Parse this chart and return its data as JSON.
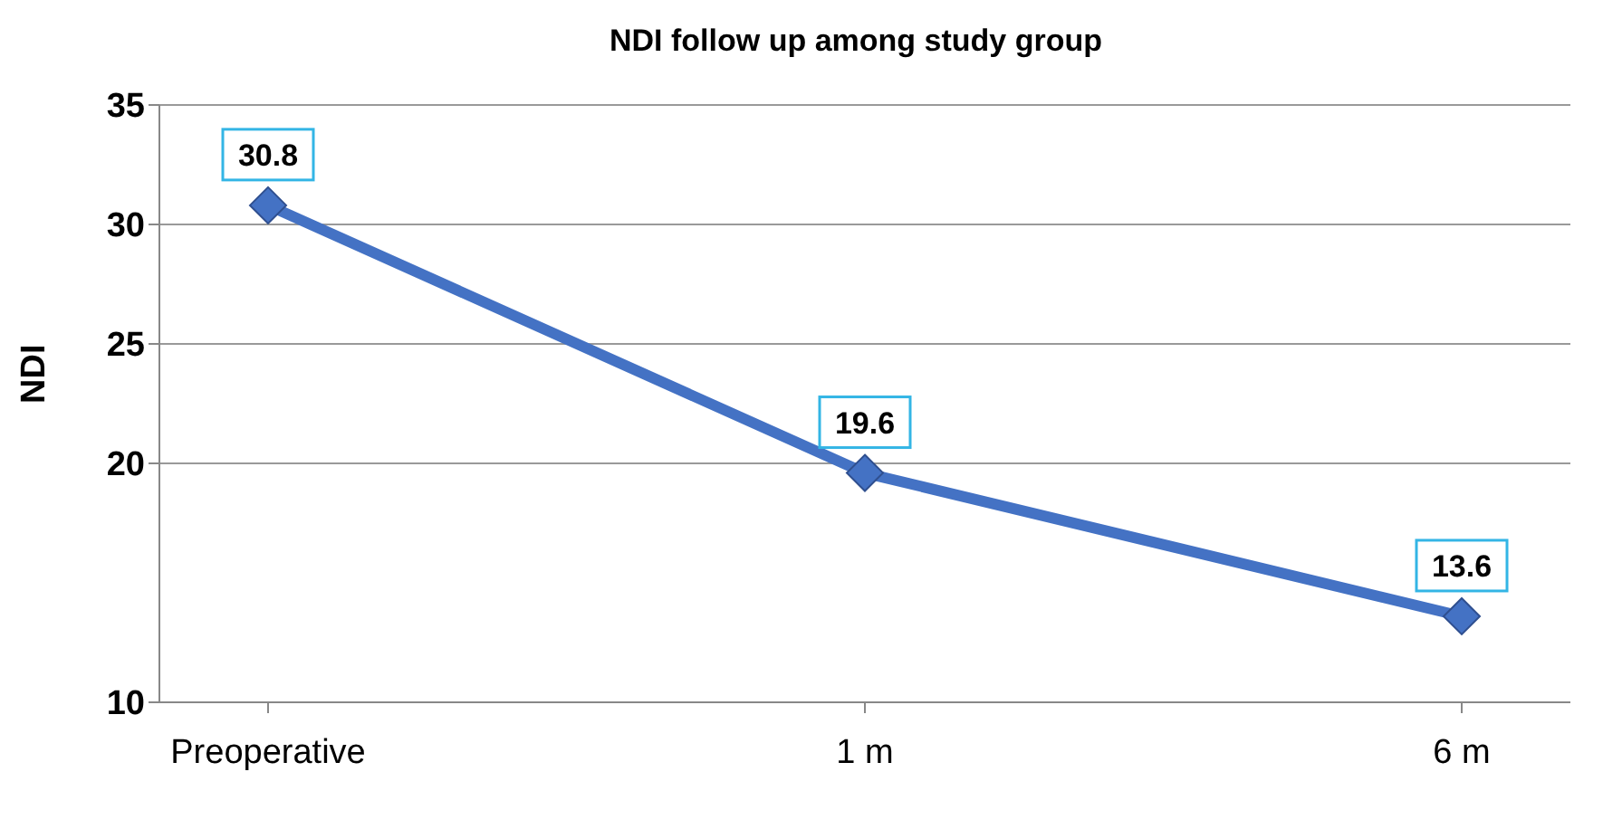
{
  "chart_data": {
    "type": "line",
    "title": "NDI follow up among study group",
    "ylabel": "NDI",
    "categories": [
      "Preoperative",
      "1 m",
      "6 m"
    ],
    "series": [
      {
        "color": "#4472c4",
        "values": [
          30.8,
          19.6,
          13.6
        ]
      }
    ],
    "ylim": [
      10,
      35
    ],
    "yticks": [
      10,
      20,
      25,
      30,
      35
    ],
    "grid": "y",
    "legend": false,
    "marker": "diamond",
    "line_style": "solid",
    "data_labels": true
  }
}
